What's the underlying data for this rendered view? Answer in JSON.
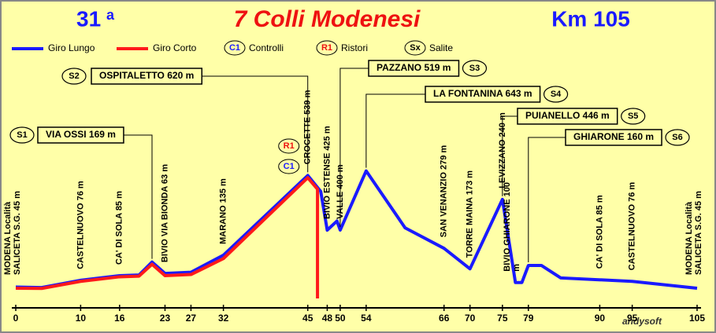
{
  "chart_data": {
    "type": "line",
    "edition": "31",
    "edition_suffix": "a",
    "title": "7 Colli Modenesi",
    "distance": "Km 105",
    "credit": "andysoft",
    "xlim": [
      0,
      105
    ],
    "ylim": [
      0,
      700
    ],
    "xticks": [
      0,
      10,
      16,
      23,
      27,
      32,
      45,
      48,
      50,
      54,
      66,
      70,
      75,
      79,
      90,
      95,
      105
    ],
    "series": [
      {
        "name": "Giro Lungo",
        "color": "#1a1aff",
        "x": [
          0,
          4,
          10,
          16,
          19,
          21,
          23,
          27,
          32,
          45,
          47,
          48,
          49.5,
          50,
          54,
          60,
          66,
          70,
          75,
          77,
          78,
          79,
          81,
          84,
          95,
          105
        ],
        "values": [
          50,
          48,
          80,
          100,
          103,
          160,
          110,
          115,
          190,
          540,
          470,
          300,
          340,
          300,
          560,
          310,
          220,
          130,
          435,
          70,
          70,
          145,
          145,
          90,
          75,
          45
        ]
      },
      {
        "name": "Giro Corto",
        "color": "#ff1a1a",
        "x": [
          0,
          4,
          10,
          16,
          19,
          21,
          23,
          27,
          32,
          45,
          46.5,
          46.5
        ],
        "values": [
          45,
          44,
          75,
          95,
          98,
          150,
          100,
          105,
          175,
          530,
          480,
          0
        ]
      }
    ],
    "legend_markers": [
      {
        "symbol": "C1",
        "label": "Controlli"
      },
      {
        "symbol": "R1",
        "label": "Ristori"
      },
      {
        "symbol": "Sx",
        "label": "Salite"
      }
    ],
    "checkpoint_markers": [
      {
        "symbol": "R1",
        "km": 45
      },
      {
        "symbol": "C1",
        "km": 45
      }
    ],
    "waypoints": [
      {
        "km": 0,
        "lines": [
          "MODENA Località",
          "SALICETA S.G. 45 m"
        ]
      },
      {
        "km": 10,
        "lines": [
          "CASTELNUOVO 76 m"
        ]
      },
      {
        "km": 16,
        "lines": [
          "CA' DI SOLA 85 m"
        ]
      },
      {
        "km": 23,
        "lines": [
          "BIVIO VIA BIONDA 63 m"
        ]
      },
      {
        "km": 32,
        "lines": [
          "MARANO 135 m"
        ]
      },
      {
        "km": 45,
        "lines": [
          "CROCETTE 539 m"
        ]
      },
      {
        "km": 48,
        "lines": [
          "BIVIO ESTENSE 425 m"
        ]
      },
      {
        "km": 50,
        "lines": [
          "VALLE 400 m"
        ]
      },
      {
        "km": 66,
        "lines": [
          "SAN VENANZIO 279 m"
        ]
      },
      {
        "km": 70,
        "lines": [
          "TORRE MAINA 173 m"
        ]
      },
      {
        "km": 75,
        "lines": [
          "LEVIZZANO 240 m"
        ]
      },
      {
        "km": 77,
        "lines": [
          "BIVIO GHIARONE 100",
          "m"
        ]
      },
      {
        "km": 90,
        "lines": [
          "CA' DI SOLA 85 m"
        ]
      },
      {
        "km": 95,
        "lines": [
          "CASTELNUOVO 76 m"
        ]
      },
      {
        "km": 105,
        "lines": [
          "MODENA Località",
          "SALICETA S.G. 45 m"
        ]
      }
    ],
    "climbs": [
      {
        "id": "S1",
        "label": "VIA OSSI 169 m",
        "km": 21
      },
      {
        "id": "S2",
        "label": "OSPITALETTO 620 m",
        "km": 45
      },
      {
        "id": "S3",
        "label": "PAZZANO 519 m",
        "km": 50
      },
      {
        "id": "S4",
        "label": "LA FONTANINA 643 m",
        "km": 54
      },
      {
        "id": "S5",
        "label": "PUIANELLO 446 m",
        "km": 75
      },
      {
        "id": "S6",
        "label": "GHIARONE 160 m",
        "km": 79
      }
    ]
  }
}
